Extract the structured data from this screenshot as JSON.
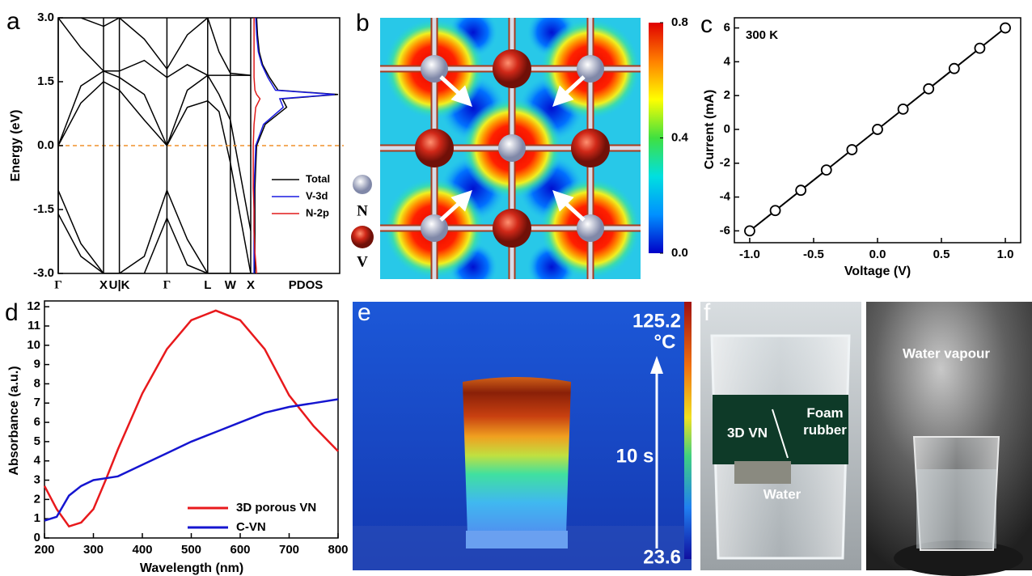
{
  "chart_data": [
    {
      "type": "band-structure",
      "panel": "a",
      "ylabel": "Energy (eV)",
      "ylim": [
        -3,
        3
      ],
      "yticks": [
        {
          "value": 3,
          "label": "3.0"
        },
        {
          "value": 1.5,
          "label": "1.5"
        },
        {
          "value": 0,
          "label": "0.0"
        },
        {
          "value": -1.5,
          "label": "-1.5"
        },
        {
          "value": -3,
          "label": "-3.0"
        }
      ],
      "xlim": [
        0,
        4.25
      ],
      "xticks": [
        {
          "value": 0,
          "label": "Γ"
        },
        {
          "value": 1.0,
          "label": "X"
        },
        {
          "value": 1.35,
          "label": "U|K"
        },
        {
          "value": 2.4,
          "label": "Γ"
        },
        {
          "value": 3.3,
          "label": "L"
        },
        {
          "value": 3.8,
          "label": "W"
        },
        {
          "value": 4.25,
          "label": "X"
        }
      ],
      "x": [
        0,
        0.5,
        1.0,
        1.35,
        1.9,
        2.4,
        2.85,
        3.3,
        3.55,
        3.8,
        4.25
      ],
      "bands": [
        [
          -1.05,
          -2.3,
          -3,
          -3,
          -2.6,
          -1.05,
          -2.2,
          -3,
          -3,
          -3,
          -3
        ],
        [
          -1.6,
          -2.6,
          -3,
          -3,
          -3,
          -1.7,
          -2.8,
          -3,
          -3,
          -3,
          -3
        ],
        [
          0,
          1.0,
          1.5,
          1.3,
          0.6,
          0,
          0.9,
          1.05,
          0.8,
          -0.4,
          -3
        ],
        [
          0,
          1.4,
          1.75,
          1.6,
          1.2,
          0,
          1.3,
          1.65,
          1.65,
          1.65,
          1.65
        ],
        [
          3,
          2.3,
          1.75,
          1.75,
          2,
          1.6,
          1.9,
          1.65,
          1.2,
          0.6,
          -2
        ],
        [
          3,
          3,
          2.8,
          3,
          2.5,
          1.8,
          2.6,
          3,
          2.2,
          1.7,
          1.65
        ]
      ],
      "band_color": "#000000",
      "fermi_level": 0,
      "fermi_color": "#f0902a",
      "pdos": {
        "xlabel": "PDOS",
        "xlim": [
          0,
          10
        ],
        "energy": [
          -3,
          -2.5,
          -2,
          -1.5,
          -1,
          -0.5,
          0,
          0.5,
          0.9,
          1.1,
          1.2,
          1.3,
          1.6,
          1.9,
          2.2,
          2.6,
          3
        ],
        "series": [
          {
            "name": "Total",
            "color": "#000000",
            "values": [
              0.3,
              0.3,
              0.3,
              0.3,
              0.3,
              0.4,
              0.5,
              1.5,
              4,
              3.5,
              10,
              3,
              2,
              1.2,
              0.8,
              0.6,
              0.5
            ]
          },
          {
            "name": "V-3d",
            "color": "#1a1ae0",
            "values": [
              0.2,
              0.2,
              0.2,
              0.2,
              0.2,
              0.3,
              0.4,
              1.3,
              3.6,
              3.2,
              9.6,
              2.7,
              1.8,
              1.1,
              0.7,
              0.5,
              0.4
            ]
          },
          {
            "name": "N-2p",
            "color": "#e01a1a",
            "values": [
              0.5,
              0.3,
              0.2,
              0.2,
              0.1,
              0.1,
              0.1,
              0.2,
              0.4,
              0.9,
              0.5,
              0.3,
              0.2,
              0.2,
              0.2,
              0.2,
              0.2
            ]
          }
        ]
      }
    },
    {
      "type": "charge-density-map",
      "panel": "b",
      "colorbar": {
        "lim": [
          0,
          0.8
        ],
        "ticks": [
          {
            "value": 0,
            "label": "0.0"
          },
          {
            "value": 0.4,
            "label": "0.4"
          },
          {
            "value": 0.8,
            "label": "0.8"
          }
        ],
        "colors": [
          "#0000c8",
          "#0090ff",
          "#00e0e0",
          "#40e040",
          "#ffff00",
          "#ff8000",
          "#e00000"
        ]
      },
      "atoms": [
        {
          "label": "N",
          "color": "#c8cce0"
        },
        {
          "label": "V",
          "color": "#d02818"
        }
      ]
    },
    {
      "type": "line",
      "panel": "c",
      "annotation": "300 K",
      "xlabel": "Voltage (V)",
      "ylabel": "Current (mA)",
      "x": [
        -1,
        -0.8,
        -0.6,
        -0.4,
        -0.2,
        0,
        0.2,
        0.4,
        0.6,
        0.8,
        1
      ],
      "series": [
        {
          "color": "#000000",
          "values": [
            -6,
            -4.8,
            -3.6,
            -2.4,
            -1.2,
            0,
            1.2,
            2.4,
            3.6,
            4.8,
            6
          ]
        }
      ],
      "marker": "open-circle",
      "xlim": [
        -1.12,
        1.12
      ],
      "xticks": [
        {
          "value": -1,
          "label": "-1.0"
        },
        {
          "value": -0.5,
          "label": "-0.5"
        },
        {
          "value": 0,
          "label": "0.0"
        },
        {
          "value": 0.5,
          "label": "0.5"
        },
        {
          "value": 1,
          "label": "1.0"
        }
      ],
      "ylim": [
        -6.7,
        6.6
      ],
      "yticks": [
        -6,
        -4,
        -2,
        0,
        2,
        4,
        6
      ]
    },
    {
      "type": "line",
      "panel": "d",
      "xlabel": "Wavelength (nm)",
      "ylabel": "Absorbance (a.u.)",
      "x": [
        200,
        225,
        250,
        275,
        300,
        325,
        350,
        400,
        450,
        500,
        550,
        600,
        650,
        700,
        750,
        800
      ],
      "series": [
        {
          "name": "3D porous VN",
          "color": "#e8191c",
          "values": [
            2.7,
            1.5,
            0.6,
            0.8,
            1.5,
            3.0,
            4.6,
            7.5,
            9.8,
            11.3,
            11.8,
            11.3,
            9.8,
            7.4,
            5.8,
            4.5
          ]
        },
        {
          "name": "C-VN",
          "color": "#1515d0",
          "values": [
            0.9,
            1.1,
            2.2,
            2.7,
            3.0,
            3.1,
            3.2,
            3.8,
            4.4,
            5.0,
            5.5,
            6.0,
            6.5,
            6.8,
            7.0,
            7.2
          ]
        }
      ],
      "xlim": [
        200,
        800
      ],
      "xticks": [
        200,
        300,
        400,
        500,
        600,
        700,
        800
      ],
      "ylim": [
        0,
        12.3
      ],
      "yticks": [
        0,
        1,
        2,
        3,
        4,
        5,
        6,
        7,
        8,
        9,
        10,
        11,
        12
      ],
      "legend": "lower right"
    },
    {
      "type": "thermal-image",
      "panel": "e",
      "max_temperature": 125.2,
      "unit": "°C",
      "time_label": "10 s",
      "min_temperature": 23.6
    },
    {
      "type": "photo",
      "panel": "f",
      "labels": {
        "film": "3D VN",
        "support": "Foam rubber",
        "liquid": "Water",
        "vapour": "Water vapour"
      }
    }
  ]
}
